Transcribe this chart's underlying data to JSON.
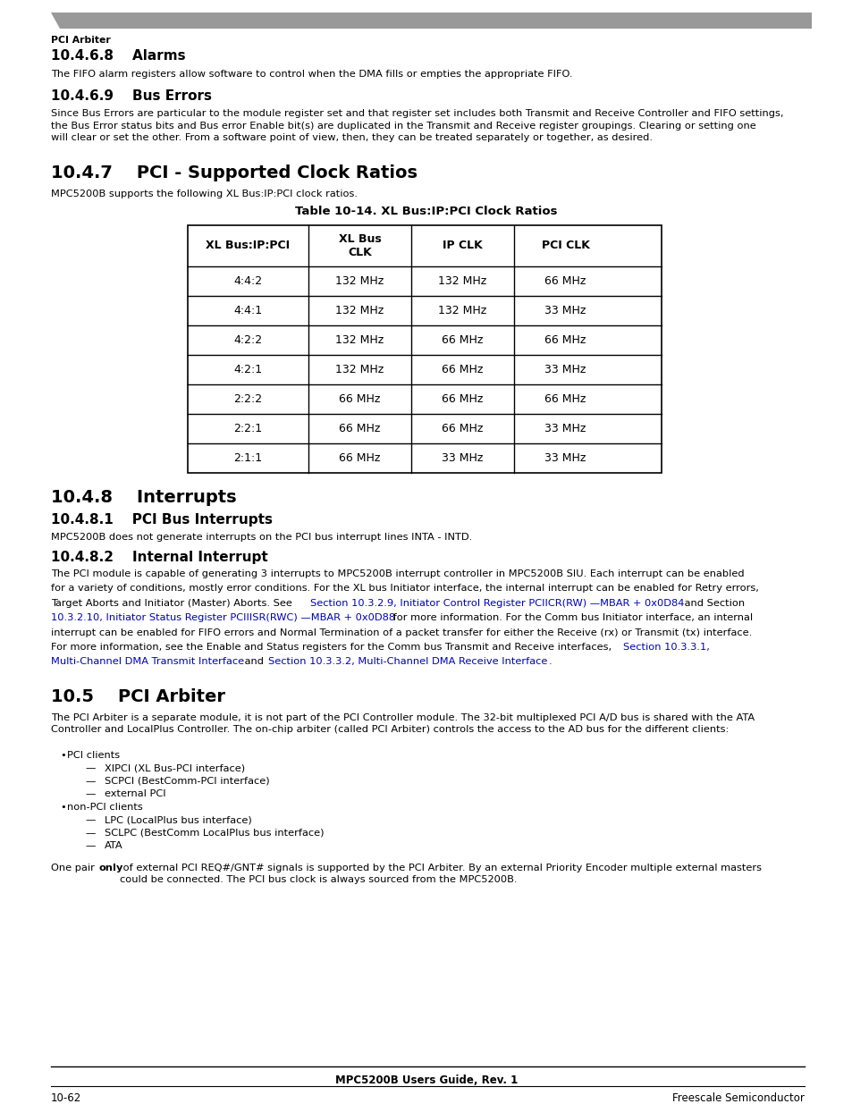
{
  "page_bg": "#ffffff",
  "header_bar_color": "#999999",
  "header_text": "PCI Arbiter",
  "section_468_title": "10.4.6.8    Alarms",
  "section_468_body": "The FIFO alarm registers allow software to control when the DMA fills or empties the appropriate FIFO.",
  "section_469_title": "10.4.6.9    Bus Errors",
  "section_469_body": "Since Bus Errors are particular to the module register set and that register set includes both Transmit and Receive Controller and FIFO settings,\nthe Bus Error status bits and Bus error Enable bit(s) are duplicated in the Transmit and Receive register groupings. Clearing or setting one\nwill clear or set the other. From a software point of view, then, they can be treated separately or together, as desired.",
  "section_47_title": "10.4.7    PCI - Supported Clock Ratios",
  "section_47_body": "MPC5200B supports the following XL Bus:IP:PCI clock ratios.",
  "table_title": "Table 10-14. XL Bus:IP:PCI Clock Ratios",
  "table_headers": [
    "XL Bus:IP:PCI",
    "XL Bus\nCLK",
    "IP CLK",
    "PCI CLK"
  ],
  "table_rows": [
    [
      "4:4:2",
      "132 MHz",
      "132 MHz",
      "66 MHz"
    ],
    [
      "4:4:1",
      "132 MHz",
      "132 MHz",
      "33 MHz"
    ],
    [
      "4:2:2",
      "132 MHz",
      "66 MHz",
      "66 MHz"
    ],
    [
      "4:2:1",
      "132 MHz",
      "66 MHz",
      "33 MHz"
    ],
    [
      "2:2:2",
      "66 MHz",
      "66 MHz",
      "66 MHz"
    ],
    [
      "2:2:1",
      "66 MHz",
      "66 MHz",
      "33 MHz"
    ],
    [
      "2:1:1",
      "66 MHz",
      "33 MHz",
      "33 MHz"
    ]
  ],
  "section_48_title": "10.4.8    Interrupts",
  "section_481_title": "10.4.8.1    PCI Bus Interrupts",
  "section_481_body": "MPC5200B does not generate interrupts on the PCI bus interrupt lines INTA - INTD.",
  "section_482_title": "10.4.8.2    Internal Interrupt",
  "section_482_lines": [
    {
      "text": "The PCI module is capable of generating 3 interrupts to MPC5200B interrupt controller in MPC5200B SIU. Each interrupt can be enabled",
      "color": "black"
    },
    {
      "text": "for a variety of conditions, mostly error conditions. For the XL bus Initiator interface, the internal interrupt can be enabled for Retry errors,",
      "color": "black"
    },
    {
      "text": "Target Aborts and Initiator (Master) Aborts. See ",
      "color": "black"
    },
    {
      "text": "Section 10.3.2.9, Initiator Control Register PCIICR(RW) —MBAR + 0x0D84",
      "color": "blue"
    },
    {
      "text": " and Section",
      "color": "black"
    },
    {
      "text": "10.3.2.10, Initiator Status Register PCIIISR(RWC) —MBAR + 0x0D88",
      "color": "blue"
    },
    {
      "text": " for more information. For the Comm bus Initiator interface, an internal",
      "color": "black"
    },
    {
      "text": "interrupt can be enabled for FIFO errors and Normal Termination of a packet transfer for either the Receive (rx) or Transmit (tx) interface.",
      "color": "black"
    },
    {
      "text": "For more information, see the Enable and Status registers for the Comm bus Transmit and Receive interfaces, ",
      "color": "black"
    },
    {
      "text": "Section 10.3.3.1,",
      "color": "blue"
    },
    {
      "text": "Multi-Channel DMA Transmit Interface",
      "color": "blue"
    },
    {
      "text": " and ",
      "color": "black"
    },
    {
      "text": "Section 10.3.3.2, Multi-Channel DMA Receive Interface",
      "color": "blue"
    },
    {
      "text": ".",
      "color": "black"
    }
  ],
  "section_105_title": "10.5    PCI Arbiter",
  "section_105_body1": "The PCI Arbiter is a separate module, it is not part of the PCI Controller module. The 32-bit multiplexed PCI A/D bus is shared with the ATA\nController and LocalPlus Controller. The on-chip arbiter (called PCI Arbiter) controls the access to the AD bus for the different clients:",
  "bullet1": "PCI clients",
  "sub_bullet1": [
    "XIPCI (XL Bus-PCI interface)",
    "SCPCI (BestComm-PCI interface)",
    "external PCI"
  ],
  "bullet2": "non-PCI clients",
  "sub_bullet2": [
    "LPC (LocalPlus bus interface)",
    "SCLPC (BestComm LocalPlus bus interface)",
    "ATA"
  ],
  "section_105_body2_pre": "One pair ",
  "section_105_body2_bold": "only",
  "section_105_body2_post": " of external PCI REQ#/GNT# signals is supported by the PCI Arbiter. By an external Priority Encoder multiple external masters\ncould be connected. The PCI bus clock is always sourced from the MPC5200B.",
  "footer_center": "MPC5200B Users Guide, Rev. 1",
  "footer_left": "10-62",
  "footer_right": "Freescale Semiconductor",
  "link_color": "#0000bb",
  "body_font_size": 8.2,
  "sub_title_font_size": 11.0,
  "main_title_font_size": 14.0
}
